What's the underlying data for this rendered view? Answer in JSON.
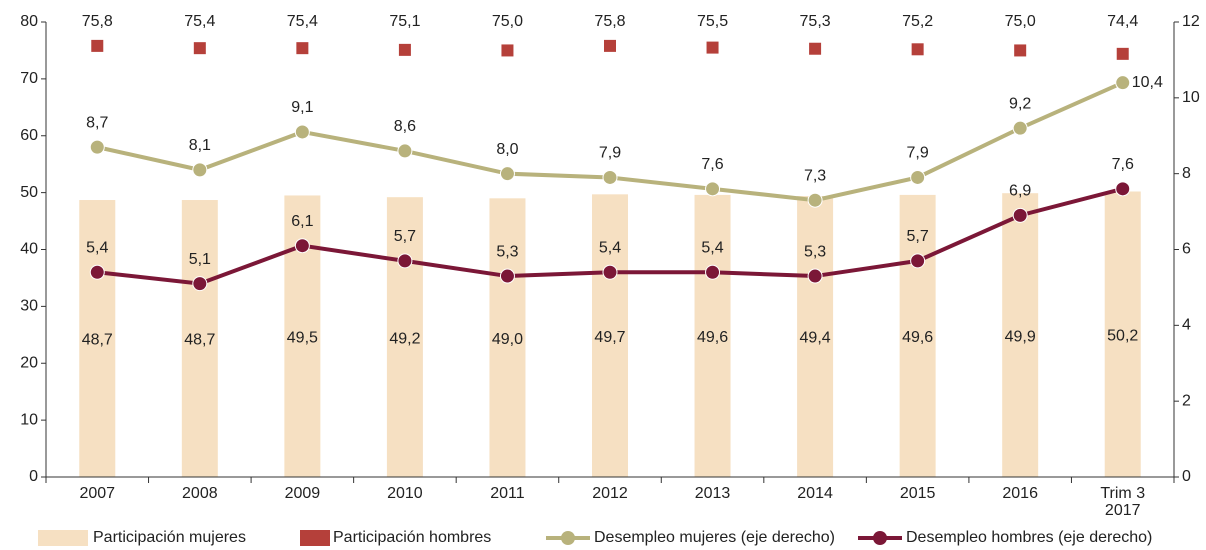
{
  "chart_data": {
    "type": "combo",
    "categories": [
      "2007",
      "2008",
      "2009",
      "2010",
      "2011",
      "2012",
      "2013",
      "2014",
      "2015",
      "2016",
      "Trim 3\n2017"
    ],
    "ylim": [
      0,
      80
    ],
    "yticks": [
      0,
      10,
      20,
      30,
      40,
      50,
      60,
      70,
      80
    ],
    "y2lim": [
      0,
      12
    ],
    "y2ticks": [
      0,
      2,
      4,
      6,
      8,
      10,
      12
    ],
    "grid": false,
    "legend": "bottom",
    "series": [
      {
        "name": "Participación mujeres",
        "type": "bar",
        "color": "#f6e0c2",
        "values": [
          48.7,
          48.7,
          49.5,
          49.2,
          49.0,
          49.7,
          49.6,
          49.4,
          49.6,
          49.9,
          50.2
        ],
        "value_labels": [
          "48,7",
          "48,7",
          "49,5",
          "49,2",
          "49,0",
          "49,7",
          "49,6",
          "49,4",
          "49,6",
          "49,9",
          "50,2"
        ]
      },
      {
        "name": "Participación hombres",
        "type": "square",
        "color": "#b5403a",
        "values": [
          75.8,
          75.4,
          75.4,
          75.1,
          75.0,
          75.8,
          75.5,
          75.3,
          75.2,
          75.0,
          74.4
        ],
        "value_labels": [
          "75,8",
          "75,4",
          "75,4",
          "75,1",
          "75,0",
          "75,8",
          "75,5",
          "75,3",
          "75,2",
          "75,0",
          "74,4"
        ]
      },
      {
        "name": "Desempleo mujeres (eje derecho)",
        "type": "line",
        "axis": "y2",
        "color": "#b8b27c",
        "values": [
          8.7,
          8.1,
          9.1,
          8.6,
          8.0,
          7.9,
          7.6,
          7.3,
          7.9,
          9.2,
          10.4
        ],
        "value_labels": [
          "8,7",
          "8,1",
          "9,1",
          "8,6",
          "8,0",
          "7,9",
          "7,6",
          "7,3",
          "7,9",
          "9,2",
          "10,4"
        ]
      },
      {
        "name": "Desempleo hombres (eje derecho)",
        "type": "line",
        "axis": "y2",
        "color": "#7b1737",
        "values": [
          5.4,
          5.1,
          6.1,
          5.7,
          5.3,
          5.4,
          5.4,
          5.3,
          5.7,
          6.9,
          7.6
        ],
        "value_labels": [
          "5,4",
          "5,1",
          "6,1",
          "5,7",
          "5,3",
          "5,4",
          "5,4",
          "5,3",
          "5,7",
          "6,9",
          "7,6"
        ]
      }
    ]
  }
}
